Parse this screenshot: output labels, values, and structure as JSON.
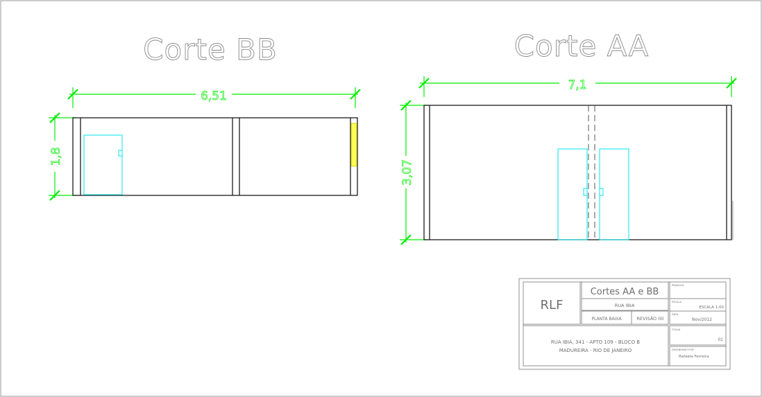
{
  "sections": {
    "bb": {
      "title": "Corte  BB",
      "width_dim": "6,51",
      "height_dim": "1,8"
    },
    "aa": {
      "title": "Corte  AA",
      "width_dim": "7,1",
      "height_dim": "3,07"
    }
  },
  "title_block": {
    "logo": "RLF",
    "drawing_title": "Cortes AA e BB",
    "street": "RUA IBIA",
    "plan_type": "PLANTA BAIXA",
    "revision": "REVISÃO 00",
    "address_line1": "RUA IBIÁ, 341 - APTO 109 - BLOCO B",
    "address_line2": "MADUREIRA - RIO DE JANEIRO",
    "scale_label": "ESCALA",
    "scale": "ESCALA 1:00",
    "date_label": "DATA",
    "date": "Nov/2012",
    "sheet_label": "FOLHA",
    "sheet": "01",
    "drawn_by_label": "DESENHADO POR",
    "drawn_by": "Rafaela Ferreira",
    "top_right_label": "PRANCHA"
  },
  "colors": {
    "background": "#ffffff",
    "wall": "#000000",
    "dimension": "#00ee00",
    "opening": "#00e5ee",
    "glass": "#ffff00",
    "title_text": "#9a9a9a",
    "block_text": "#6e6e6e",
    "frame": "#8f8f8f"
  }
}
